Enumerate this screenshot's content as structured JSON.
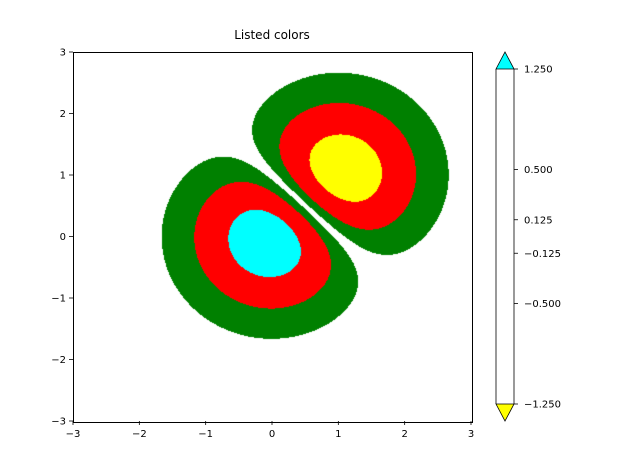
{
  "chart_data": {
    "type": "contour",
    "title": "Listed colors",
    "xlim": [
      -3,
      3
    ],
    "ylim": [
      -3,
      3
    ],
    "xticks": [
      "−3",
      "−2",
      "−1",
      "0",
      "1",
      "2",
      "3"
    ],
    "yticks": [
      "−3",
      "−2",
      "−1",
      "0",
      "1",
      "2",
      "3"
    ],
    "levels": [
      -1.25,
      -0.5,
      -0.125,
      0.125,
      0.5,
      1.25
    ],
    "level_labels": [
      "1.250",
      "0.500",
      "0.125",
      "−0.125",
      "−0.500",
      "−1.250"
    ],
    "band_colors": [
      "#ff0000",
      "#008000",
      "#ffffff",
      "#008000",
      "#ff0000"
    ],
    "over_color": "#00ffff",
    "under_color": "#ffff00",
    "colorbar_fill": "#ffffff",
    "colorbar_extend": "both",
    "grid": false
  }
}
